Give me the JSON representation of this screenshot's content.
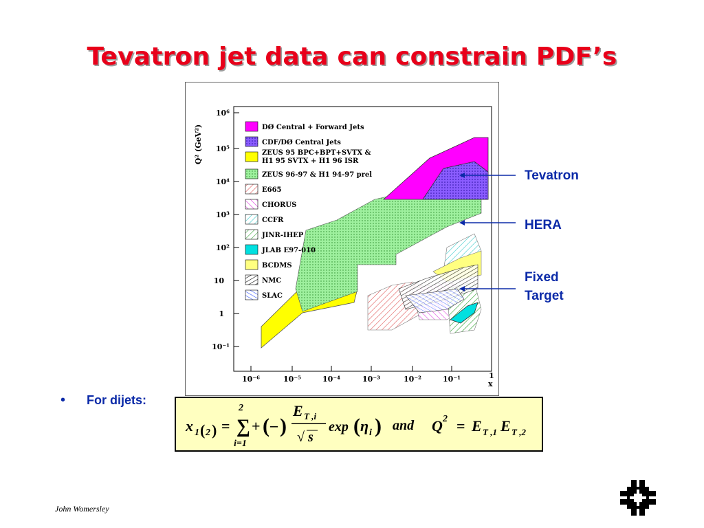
{
  "slide": {
    "title": "Tevatron jet data can constrain PDF’s",
    "author": "John Womersley",
    "bullet": "For dijets:",
    "callouts": {
      "tevatron": "Tevatron",
      "hera": "HERA",
      "fixed_target_line1": "Fixed",
      "fixed_target_line2": "Target"
    },
    "title_color": "#e8001a",
    "text_color": "#0b2aa8"
  },
  "plot": {
    "y_axis_label": "Q² (GeV²)",
    "x_axis_label": "x",
    "y_ticks": [
      "10⁻¹",
      "1",
      "10",
      "10²",
      "10³",
      "10⁴",
      "10⁵",
      "10⁶"
    ],
    "x_ticks": [
      "10⁻⁶",
      "10⁻⁵",
      "10⁻⁴",
      "10⁻³",
      "10⁻²",
      "10⁻¹",
      "1"
    ],
    "scale": "log-log",
    "legend": [
      {
        "label": "DØ Central + Forward Jets",
        "color": "#ff00ff",
        "pattern": "solid"
      },
      {
        "label": "CDF/DØ Central Jets",
        "color": "#7f3fff",
        "pattern": "dots"
      },
      {
        "label": "ZEUS 95 BPC+BPT+SVTX &",
        "label2": "H1 95 SVTX + H1 96 ISR",
        "color": "#ffff00",
        "pattern": "solid"
      },
      {
        "label": "ZEUS 96-97 & H1 94-97 prel",
        "color": "#80e880",
        "pattern": "dots"
      },
      {
        "label": "E665",
        "color": "#ff6060",
        "pattern": "hatch"
      },
      {
        "label": "CHORUS",
        "color": "#ff60ff",
        "pattern": "hatch"
      },
      {
        "label": "CCFR",
        "color": "#40e0e0",
        "pattern": "hatch"
      },
      {
        "label": "JINR-IHEP",
        "color": "#40c040",
        "pattern": "hatch"
      },
      {
        "label": "JLAB E97-010",
        "color": "#00e0e0",
        "pattern": "solid"
      },
      {
        "label": "BCDMS",
        "color": "#ffff80",
        "pattern": "solid"
      },
      {
        "label": "NMC",
        "color": "#000000",
        "pattern": "hatch"
      },
      {
        "label": "SLAC",
        "color": "#3050ff",
        "pattern": "hatch"
      }
    ]
  },
  "formula": {
    "x_sym": "x",
    "sub1": "1",
    "sub2": "2",
    "equals": "=",
    "sum_upper": "2",
    "sum_lower": "i=1",
    "plus_minus_a": "+",
    "plus_minus_b": "–",
    "num": "E",
    "num_sub": "T ,i",
    "den": "s",
    "exp": "exp",
    "eta": "η",
    "eta_sub": "i",
    "and": "and",
    "q": "Q",
    "q_sup": "2",
    "rhs_e1": "E",
    "rhs_sub1": "T ,1",
    "rhs_e2": "E",
    "rhs_sub2": "T ,2"
  }
}
